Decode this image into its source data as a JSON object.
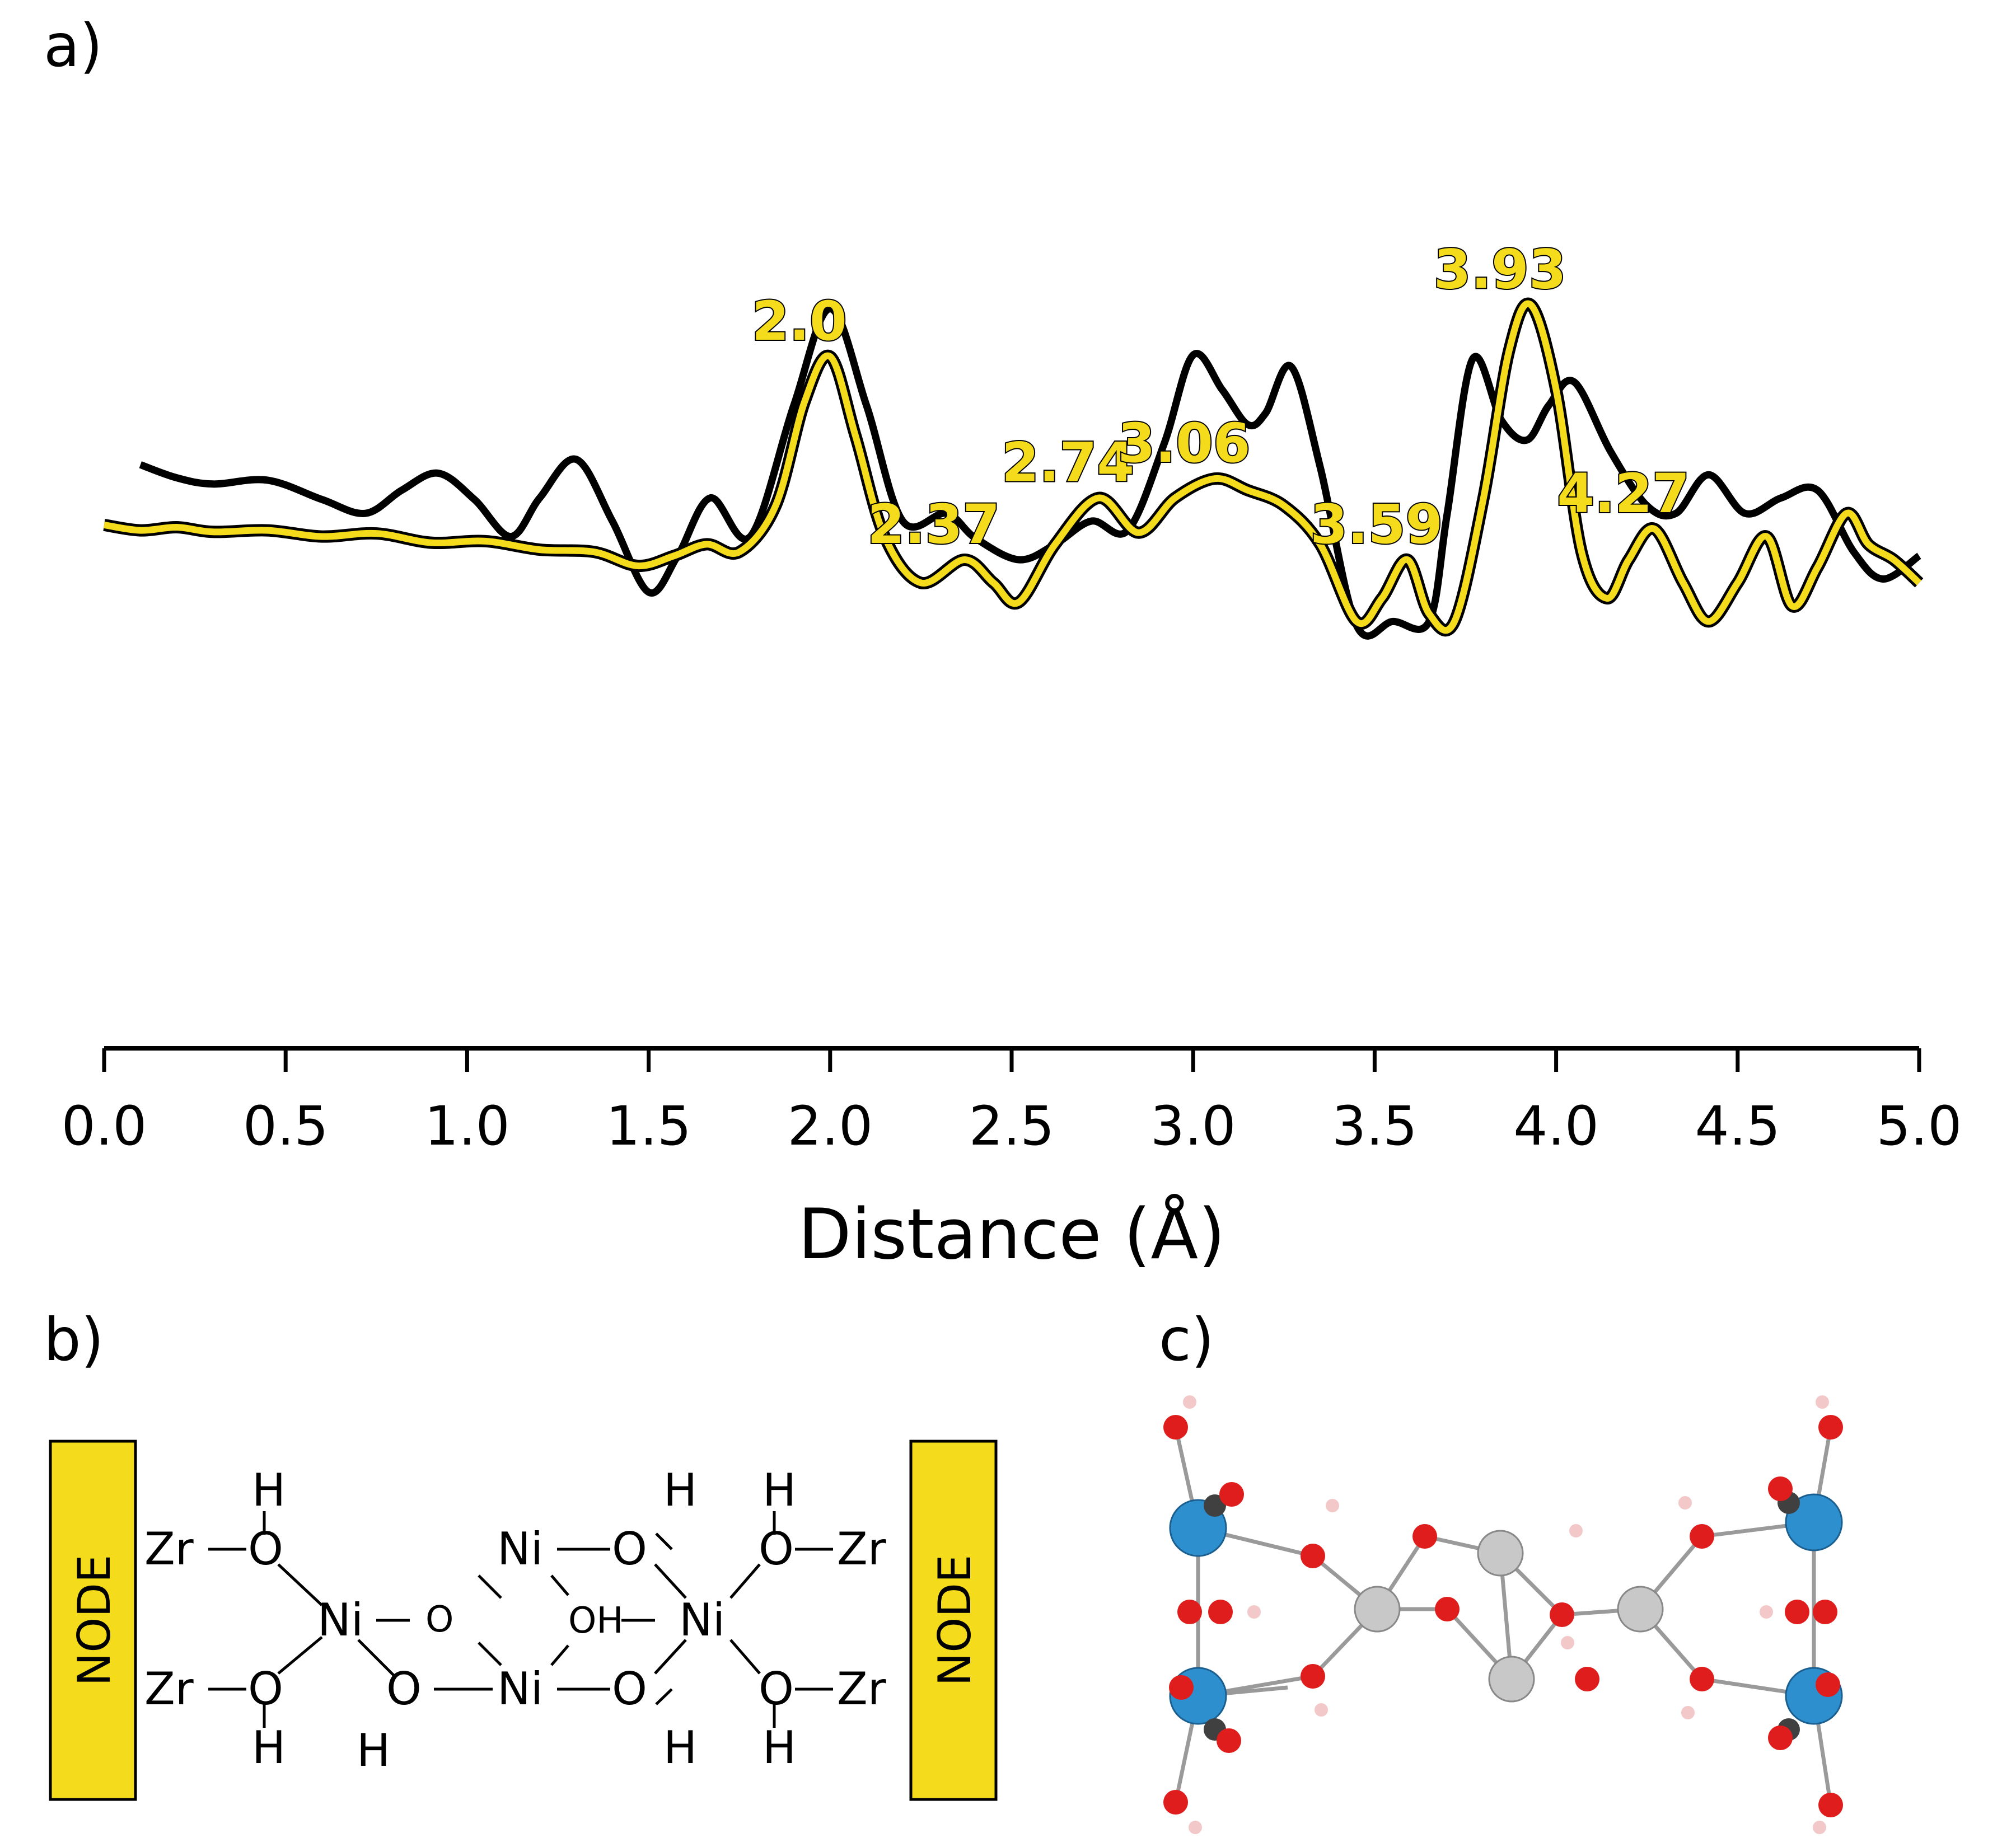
{
  "panels": {
    "a": "a)",
    "b": "b)",
    "c": "c)"
  },
  "chart_data": {
    "type": "line",
    "xlabel": "Distance (Å)",
    "xlim": [
      0.0,
      5.0
    ],
    "xticks": [
      "0.0",
      "0.5",
      "1.0",
      "1.5",
      "2.0",
      "2.5",
      "3.0",
      "3.5",
      "4.0",
      "4.5",
      "5.0"
    ],
    "series": [
      {
        "color": "#000000",
        "x": [
          0.1,
          0.2,
          0.3,
          0.45,
          0.6,
          0.72,
          0.82,
          0.92,
          1.02,
          1.12,
          1.2,
          1.3,
          1.4,
          1.5,
          1.58,
          1.67,
          1.78,
          1.9,
          2.0,
          2.1,
          2.2,
          2.32,
          2.4,
          2.52,
          2.62,
          2.72,
          2.82,
          2.92,
          3.0,
          3.08,
          3.15,
          3.2,
          3.27,
          3.35,
          3.45,
          3.55,
          3.65,
          3.7,
          3.77,
          3.85,
          3.92,
          3.98,
          4.05,
          4.15,
          4.25,
          4.33,
          4.42,
          4.52,
          4.62,
          4.72,
          4.82,
          4.9,
          5.0
        ],
        "y": [
          1.23,
          1.06,
          0.98,
          1.03,
          0.78,
          0.6,
          0.9,
          1.12,
          0.78,
          0.3,
          0.8,
          1.3,
          0.5,
          -0.42,
          0.05,
          0.8,
          0.3,
          2.0,
          3.25,
          2.0,
          0.5,
          0.6,
          0.28,
          0.0,
          0.2,
          0.5,
          0.38,
          1.5,
          2.65,
          2.2,
          1.75,
          1.9,
          2.5,
          1.2,
          -0.85,
          -0.8,
          -0.8,
          0.6,
          2.6,
          1.8,
          1.55,
          2.0,
          2.3,
          1.4,
          0.7,
          0.6,
          1.1,
          0.6,
          0.8,
          0.9,
          0.1,
          -0.25,
          0.05
        ]
      },
      {
        "color": "#f4dc1c",
        "x": [
          0.0,
          0.1,
          0.2,
          0.3,
          0.45,
          0.6,
          0.75,
          0.9,
          1.05,
          1.2,
          1.35,
          1.47,
          1.57,
          1.66,
          1.75,
          1.85,
          1.93,
          2.0,
          2.07,
          2.15,
          2.25,
          2.37,
          2.45,
          2.52,
          2.62,
          2.74,
          2.85,
          2.95,
          3.06,
          3.15,
          3.25,
          3.35,
          3.45,
          3.52,
          3.59,
          3.65,
          3.72,
          3.8,
          3.87,
          3.93,
          4.0,
          4.07,
          4.14,
          4.2,
          4.27,
          4.35,
          4.42,
          4.5,
          4.58,
          4.65,
          4.72,
          4.8,
          4.86,
          4.93,
          5.0
        ],
        "y": [
          0.45,
          0.38,
          0.42,
          0.36,
          0.38,
          0.3,
          0.34,
          0.22,
          0.24,
          0.13,
          0.1,
          -0.08,
          0.05,
          0.2,
          0.1,
          0.7,
          2.05,
          2.63,
          1.6,
          0.3,
          -0.3,
          0.0,
          -0.3,
          -0.55,
          0.2,
          0.8,
          0.35,
          0.8,
          1.05,
          0.9,
          0.7,
          0.2,
          -0.8,
          -0.5,
          0.0,
          -0.7,
          -0.8,
          0.8,
          2.7,
          3.3,
          2.2,
          0.1,
          -0.5,
          0.0,
          0.4,
          -0.3,
          -0.8,
          -0.3,
          0.3,
          -0.6,
          -0.1,
          0.6,
          0.2,
          0.0,
          -0.3
        ]
      }
    ],
    "annotations": [
      {
        "text": "2.0",
        "x": 2.0
      },
      {
        "text": "2.37",
        "x": 2.37
      },
      {
        "text": "2.74",
        "x": 2.74
      },
      {
        "text": "3.06",
        "x": 3.06
      },
      {
        "text": "3.59",
        "x": 3.59
      },
      {
        "text": "3.93",
        "x": 3.93
      },
      {
        "text": "4.27",
        "x": 4.27
      }
    ]
  },
  "scheme": {
    "node_left": "NODE",
    "node_right": "NODE",
    "zr": "Zr",
    "ni": "Ni",
    "o": "O",
    "h": "H",
    "oh": "OH",
    "dash": "—"
  },
  "colors": {
    "highlight": "#f4dc1c",
    "zr_atom": "#2e8fcf",
    "ni_atom": "#c8c8c8",
    "o_atom": "#e01d1d",
    "h_atom": "#f3c8c8",
    "c_atom": "#404040"
  }
}
